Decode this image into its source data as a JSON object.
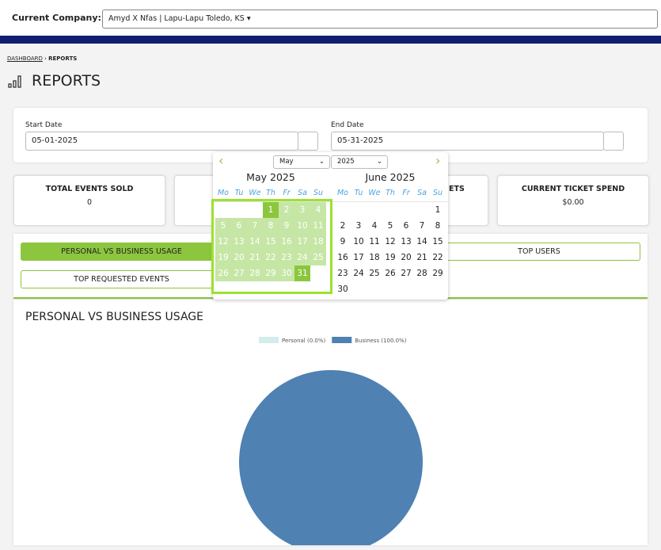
{
  "header": {
    "company_label": "Current Company:",
    "company": "Amyd X Nfas | Lapu-Lapu Toledo, KS"
  },
  "breadcrumb": {
    "parent": "DASHBOARD",
    "current": "REPORTS"
  },
  "page_title": "REPORTS",
  "filters": {
    "start": {
      "label": "Start Date",
      "value": "05-01-2025"
    },
    "end": {
      "label": "End Date",
      "value": "05-31-2025"
    }
  },
  "calendar": {
    "month_select": "May",
    "year_select": "2025",
    "months": [
      {
        "title": "May 2025",
        "weekdays": [
          "Mo",
          "Tu",
          "We",
          "Th",
          "Fr",
          "Sa",
          "Su"
        ],
        "weeks": [
          [
            null,
            null,
            null,
            1,
            2,
            3,
            4
          ],
          [
            5,
            6,
            7,
            8,
            9,
            10,
            11
          ],
          [
            12,
            13,
            14,
            15,
            16,
            17,
            18
          ],
          [
            19,
            20,
            21,
            22,
            23,
            24,
            25
          ],
          [
            26,
            27,
            28,
            29,
            30,
            31,
            null
          ]
        ]
      },
      {
        "title": "June 2025",
        "weekdays": [
          "Mo",
          "Tu",
          "We",
          "Th",
          "Fr",
          "Sa",
          "Su"
        ],
        "weeks": [
          [
            null,
            null,
            null,
            null,
            null,
            null,
            1
          ],
          [
            2,
            3,
            4,
            5,
            6,
            7,
            8
          ],
          [
            9,
            10,
            11,
            12,
            13,
            14,
            15
          ],
          [
            16,
            17,
            18,
            19,
            20,
            21,
            22
          ],
          [
            23,
            24,
            25,
            26,
            27,
            28,
            29
          ],
          [
            30,
            null,
            null,
            null,
            null,
            null,
            null
          ]
        ]
      }
    ]
  },
  "stats": [
    {
      "title": "TOTAL EVENTS SOLD",
      "value": "0"
    },
    {
      "title": "ETS"
    },
    {
      "title": "CURRENT TICKET SPEND",
      "value": "$0.00"
    }
  ],
  "tabs": [
    "PERSONAL VS BUSINESS USAGE",
    "TOP USERS",
    "TOP REQUESTED EVENTS"
  ],
  "chart_data": {
    "type": "pie",
    "title": "PERSONAL VS BUSINESS USAGE",
    "categories": [
      "Personal (0.0%)",
      "Business (100.0%)"
    ],
    "values": [
      0,
      100
    ],
    "colors": [
      "#d3ecec",
      "#4f81b3"
    ]
  }
}
